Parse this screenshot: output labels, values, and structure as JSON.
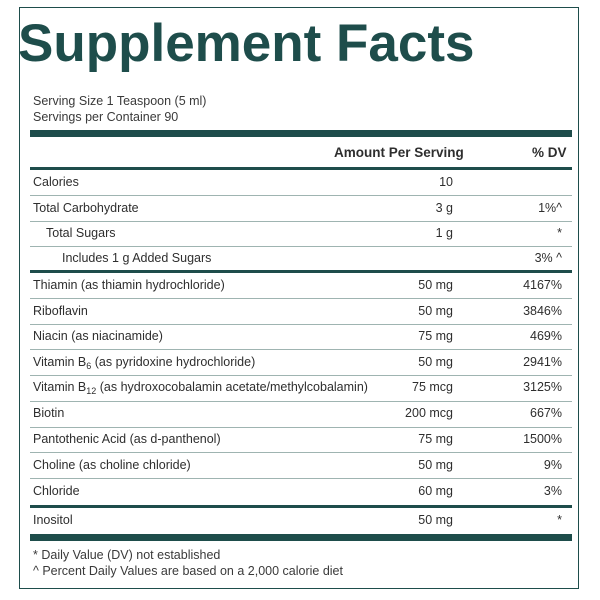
{
  "title": "Supplement Facts",
  "serving_size": "Serving Size 1 Teaspoon (5 ml)",
  "servings_per_container": "Servings per Container 90",
  "header": {
    "amount": "Amount Per Serving",
    "dv": "% DV"
  },
  "rows": [
    {
      "name": "Calories",
      "amount": "10",
      "dv": ""
    },
    {
      "name": "Total Carbohydrate",
      "amount": "3 g",
      "dv": "1%^"
    },
    {
      "name": "Total Sugars",
      "amount": "1 g",
      "dv": "*"
    },
    {
      "name": "Includes 1 g Added Sugars",
      "amount": "",
      "dv": "3% ^"
    },
    {
      "name": "Thiamin (as thiamin hydrochloride)",
      "amount": "50 mg",
      "dv": "4167%"
    },
    {
      "name": "Riboflavin",
      "amount": "50 mg",
      "dv": "3846%"
    },
    {
      "name": "Niacin (as niacinamide)",
      "amount": "75 mg",
      "dv": "469%"
    },
    {
      "name_main": "Vitamin B",
      "name_sub": "6",
      "name_rest": " (as pyridoxine hydrochloride)",
      "amount": "50 mg",
      "dv": "2941%"
    },
    {
      "name_main": "Vitamin B",
      "name_sub": "12",
      "name_rest": " (as hydroxocobalamin acetate/methylcobalamin)",
      "amount": "75 mcg",
      "dv": "3125%"
    },
    {
      "name": "Biotin",
      "amount": "200 mcg",
      "dv": "667%"
    },
    {
      "name": "Pantothenic Acid (as d-panthenol)",
      "amount": "75 mg",
      "dv": "1500%"
    },
    {
      "name": "Choline (as choline chloride)",
      "amount": "50 mg",
      "dv": "9%"
    },
    {
      "name": "Chloride",
      "amount": "60 mg",
      "dv": "3%"
    },
    {
      "name": "Inositol",
      "amount": "50 mg",
      "dv": "*"
    }
  ],
  "footnotes": {
    "dv_not_established": "* Daily Value (DV) not established",
    "percent_basis": "^ Percent Daily Values are based on a 2,000 calorie diet"
  },
  "colors": {
    "brand": "#1e4d4b",
    "text": "#2e2e2e",
    "divider": "#9fb4b1"
  }
}
